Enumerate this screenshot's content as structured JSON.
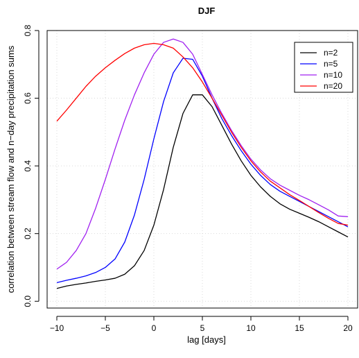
{
  "chart_data": {
    "type": "line",
    "title": "DJF",
    "xlabel": "lag [days]",
    "ylabel": "correlation between stream flow and n−day precipitation sums",
    "xlim": [
      -11,
      21
    ],
    "ylim": [
      -0.02,
      0.8
    ],
    "grid": true,
    "legend_position": "top-right",
    "x_ticks": [
      -10,
      -5,
      0,
      5,
      10,
      15,
      20
    ],
    "x_tick_labels": [
      "−10",
      "−5",
      "0",
      "5",
      "10",
      "15",
      "20"
    ],
    "y_ticks": [
      0.0,
      0.2,
      0.4,
      0.6,
      0.8
    ],
    "y_tick_labels": [
      "0.0",
      "0.2",
      "0.4",
      "0.6",
      "0.8"
    ],
    "x": [
      -10,
      -9,
      -8,
      -7,
      -6,
      -5,
      -4,
      -3,
      -2,
      -1,
      0,
      1,
      2,
      3,
      4,
      5,
      6,
      7,
      8,
      9,
      10,
      11,
      12,
      13,
      14,
      15,
      16,
      17,
      18,
      19,
      20
    ],
    "series": [
      {
        "name": "n=2",
        "color": "#000000",
        "values": [
          0.038,
          0.045,
          0.05,
          0.054,
          0.059,
          0.063,
          0.068,
          0.08,
          0.105,
          0.15,
          0.225,
          0.33,
          0.455,
          0.555,
          0.61,
          0.61,
          0.575,
          0.52,
          0.465,
          0.415,
          0.372,
          0.338,
          0.31,
          0.288,
          0.272,
          0.26,
          0.248,
          0.235,
          0.22,
          0.205,
          0.19
        ]
      },
      {
        "name": "n=5",
        "color": "#0000ff",
        "values": [
          0.055,
          0.062,
          0.068,
          0.075,
          0.085,
          0.1,
          0.125,
          0.175,
          0.255,
          0.36,
          0.48,
          0.59,
          0.675,
          0.718,
          0.715,
          0.665,
          0.6,
          0.54,
          0.49,
          0.445,
          0.405,
          0.372,
          0.345,
          0.325,
          0.31,
          0.295,
          0.28,
          0.265,
          0.25,
          0.235,
          0.22
        ]
      },
      {
        "name": "n=10",
        "color": "#a020f0",
        "values": [
          0.095,
          0.115,
          0.15,
          0.2,
          0.275,
          0.36,
          0.45,
          0.535,
          0.61,
          0.675,
          0.73,
          0.765,
          0.775,
          0.765,
          0.73,
          0.67,
          0.61,
          0.555,
          0.505,
          0.46,
          0.42,
          0.388,
          0.362,
          0.343,
          0.328,
          0.313,
          0.3,
          0.285,
          0.27,
          0.252,
          0.25
        ]
      },
      {
        "name": "n=20",
        "color": "#ff0000",
        "values": [
          0.532,
          0.565,
          0.6,
          0.635,
          0.665,
          0.69,
          0.712,
          0.732,
          0.748,
          0.758,
          0.762,
          0.758,
          0.748,
          0.722,
          0.69,
          0.648,
          0.6,
          0.55,
          0.5,
          0.455,
          0.415,
          0.382,
          0.355,
          0.335,
          0.315,
          0.298,
          0.28,
          0.262,
          0.245,
          0.23,
          0.225
        ]
      }
    ]
  }
}
